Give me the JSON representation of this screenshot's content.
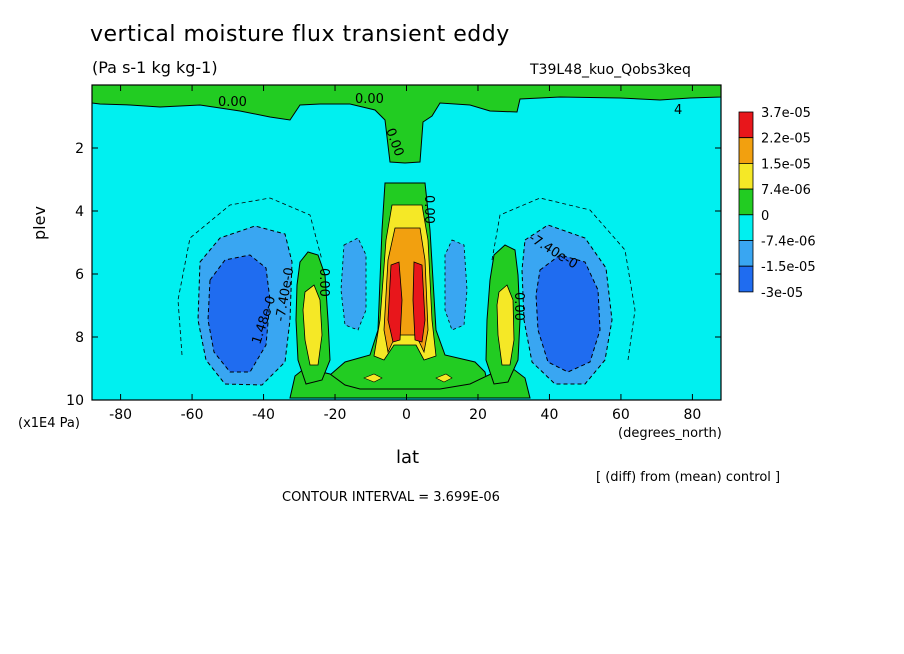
{
  "chart_data": {
    "type": "heatmap",
    "title": "vertical moisture flux transient eddy",
    "units": "(Pa s-1 kg kg-1)",
    "run_label": "T39L48_kuo_Qobs3keq",
    "xlabel": "lat",
    "x_units": "(degrees_north)",
    "ylabel": "plev",
    "y_units": "(x1E4 Pa)",
    "xlim": [
      -88,
      88
    ],
    "ylim": [
      10,
      0
    ],
    "x_ticks": [
      "-80",
      "-60",
      "-40",
      "-20",
      "0",
      "20",
      "40",
      "60",
      "80"
    ],
    "x_tick_values": [
      -80,
      -60,
      -40,
      -20,
      0,
      20,
      40,
      60,
      80
    ],
    "y_ticks": [
      "2",
      "4",
      "6",
      "8",
      "10"
    ],
    "y_tick_values": [
      2,
      4,
      6,
      8,
      10
    ],
    "colorbar": {
      "labels": [
        "3.7e-05",
        "2.2e-05",
        "1.5e-05",
        "7.4e-06",
        "0",
        "-7.4e-06",
        "-1.5e-05",
        "-3e-05"
      ],
      "colors": [
        "#e8161b",
        "#f2a00f",
        "#f5e826",
        "#22cc22",
        "#00f0f0",
        "#39a6f2",
        "#1f6cf0"
      ]
    },
    "contour_labels": [
      "0.00",
      "0.00",
      "0.00",
      "-7.40e-0",
      "1.48e-0",
      "-7.40e-0",
      "0.00",
      "0.00",
      "0.00",
      "4"
    ],
    "subtitle_note": "[ (diff) from (mean) control ]",
    "contour_interval_text": "CONTOUR INTERVAL = 3.699E-06",
    "grid": false,
    "legend_placement": "right"
  }
}
